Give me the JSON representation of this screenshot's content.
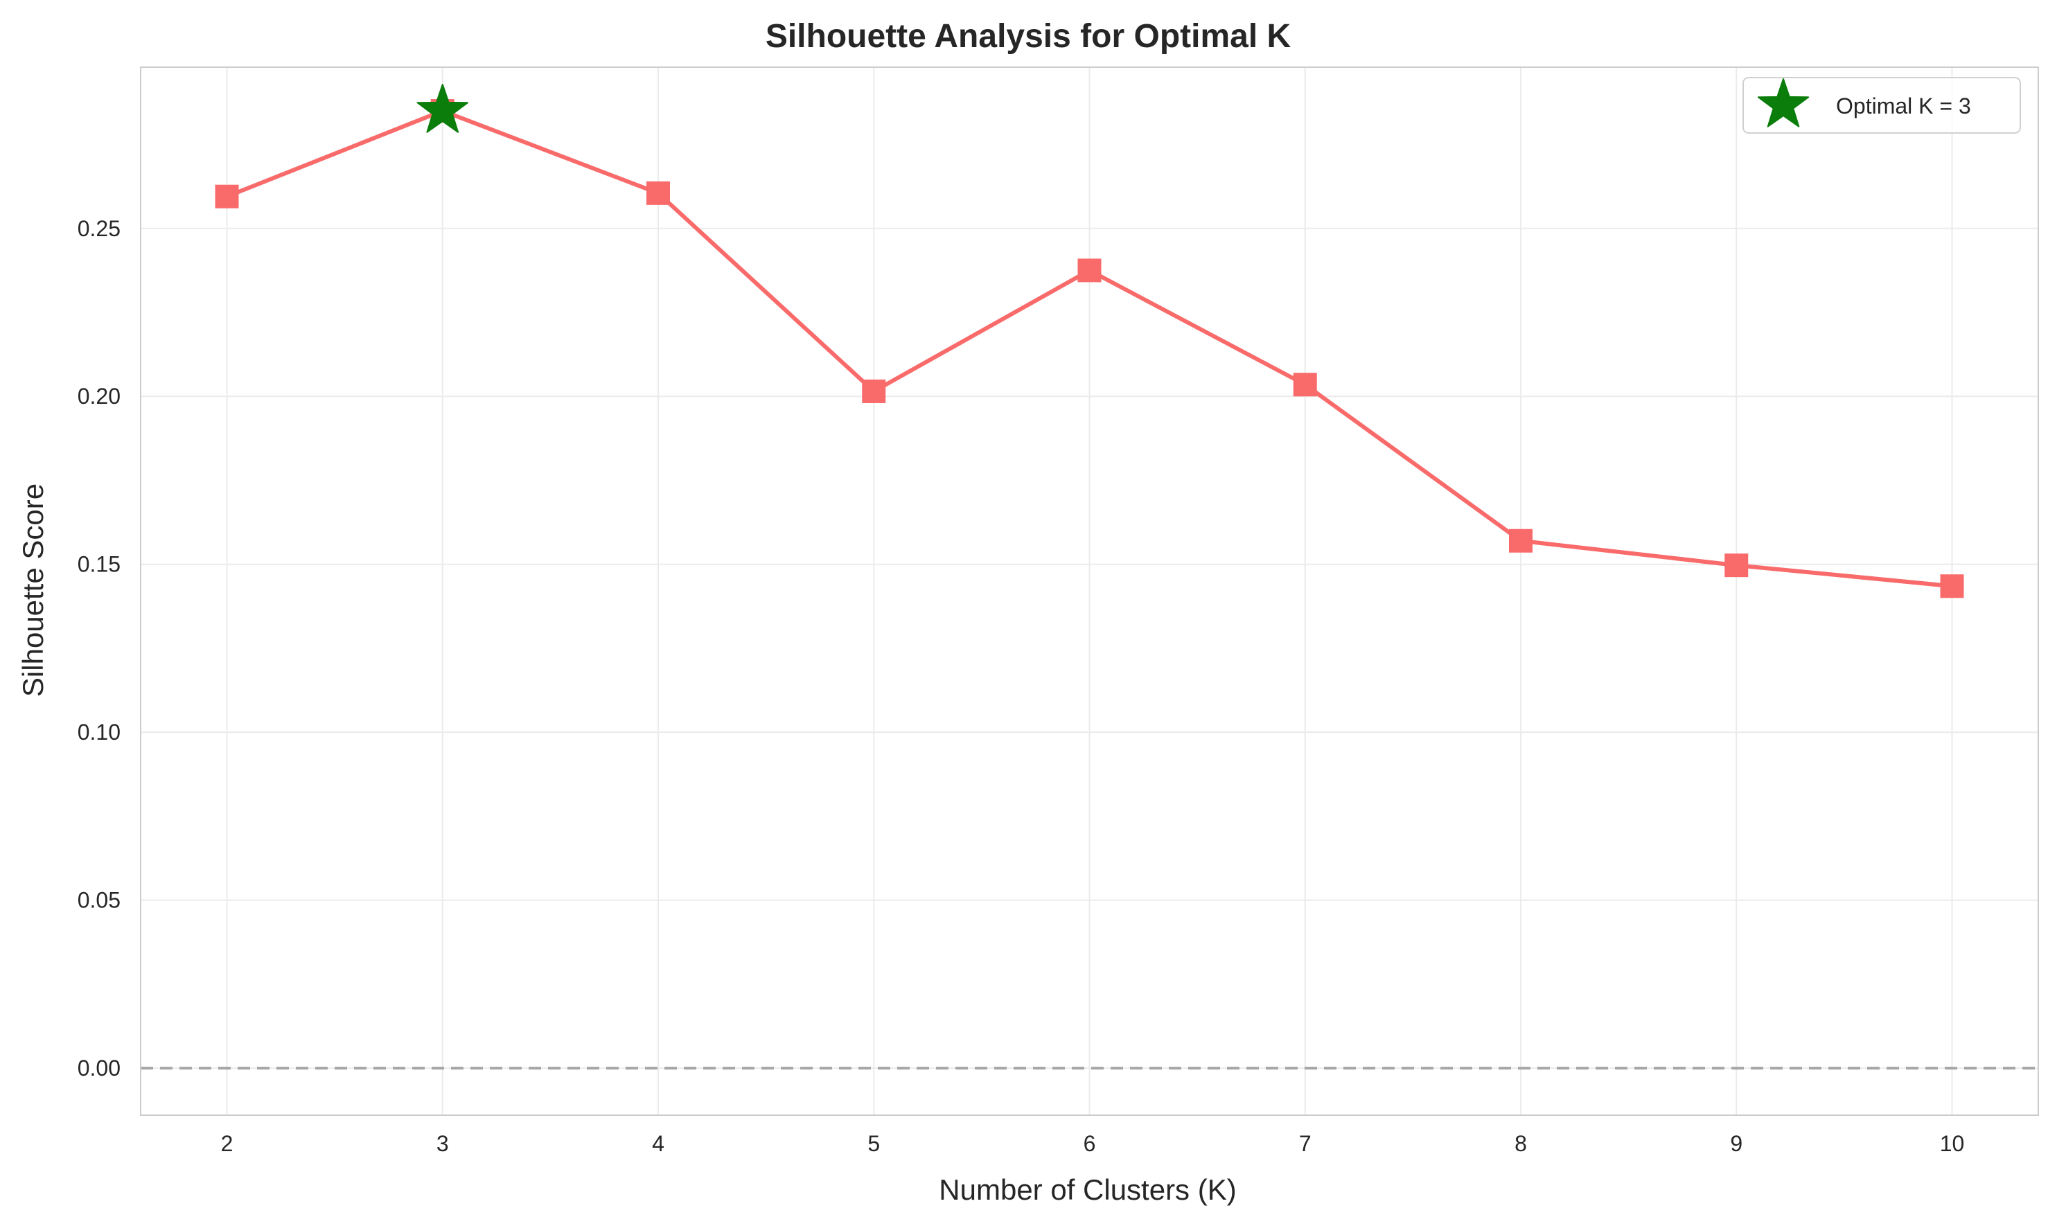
{
  "chart_data": {
    "type": "line",
    "title": "Silhouette Analysis for Optimal K",
    "xlabel": "Number of Clusters (K)",
    "ylabel": "Silhouette Score",
    "x": [
      2,
      3,
      4,
      5,
      6,
      7,
      8,
      9,
      10
    ],
    "x_tick_labels": [
      "2",
      "3",
      "4",
      "5",
      "6",
      "7",
      "8",
      "9",
      "10"
    ],
    "y_ticks": [
      0.0,
      0.05,
      0.1,
      0.15,
      0.2,
      0.25
    ],
    "y_tick_labels": [
      "0.00",
      "0.05",
      "0.10",
      "0.15",
      "0.20",
      "0.25"
    ],
    "xlim": [
      1.6,
      10.4
    ],
    "ylim": [
      -0.014,
      0.298
    ],
    "series": [
      {
        "values": [
          0.2595,
          0.285,
          0.2605,
          0.2015,
          0.2375,
          0.2035,
          0.157,
          0.1497,
          0.1435
        ],
        "marker": "square",
        "color": "#f96b6b"
      }
    ],
    "highlight": {
      "x": 3,
      "y": 0.285,
      "marker": "star",
      "color": "#0a7d0a",
      "label": "Optimal K = 3"
    },
    "reference_line": {
      "y": 0.0,
      "style": "dashed",
      "color": "#a6a6a6"
    },
    "grid": true,
    "legend_position": "top-right"
  }
}
